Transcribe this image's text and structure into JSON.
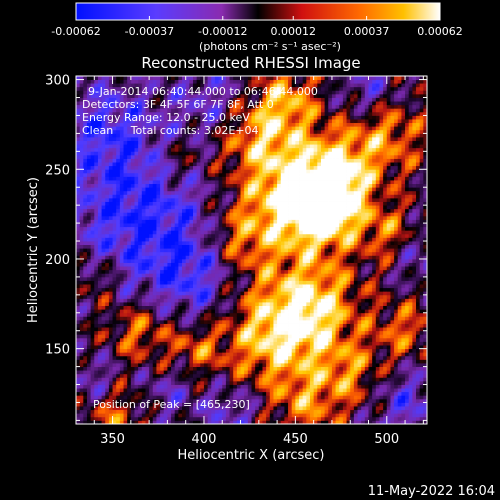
{
  "colorbar": {
    "ticks": [
      "-0.00062",
      "-0.00037",
      "-0.00012",
      "0.00012",
      "0.00037",
      "0.00062"
    ],
    "unit_label": "(photons cm⁻² s⁻¹ asec⁻²)"
  },
  "chart_data": {
    "type": "heatmap",
    "title": "Reconstructed RHESSI Image",
    "xlabel": "Heliocentric X (arcsec)",
    "ylabel": "Heliocentric Y (arcsec)",
    "xlim": [
      330,
      522
    ],
    "ylim": [
      108,
      302
    ],
    "x_ticks": [
      350,
      400,
      450,
      500
    ],
    "y_ticks": [
      150,
      200,
      250,
      300
    ],
    "color_range": [
      -0.00062,
      0.00062
    ],
    "colormap": [
      "#0000ff",
      "#5a3cff",
      "#8a2bb0",
      "#000000",
      "#c01010",
      "#ff6000",
      "#ffc000",
      "#ffffff"
    ],
    "annotations": {
      "time_range": "9-Jan-2014 06:40:44.000 to 06:46:44.000",
      "detectors": "Detectors: 3F 4F 5F 6F 7F 8F, Att 0",
      "energy_range": "Energy Range: 12.0 - 25.0 keV",
      "method_counts": "Clean     Total counts: 3.02E+04",
      "peak": "Position of Peak = [465,230]"
    },
    "peak_position": [
      465,
      230
    ]
  },
  "footer": {
    "date": "11-May-2022 16:04"
  }
}
